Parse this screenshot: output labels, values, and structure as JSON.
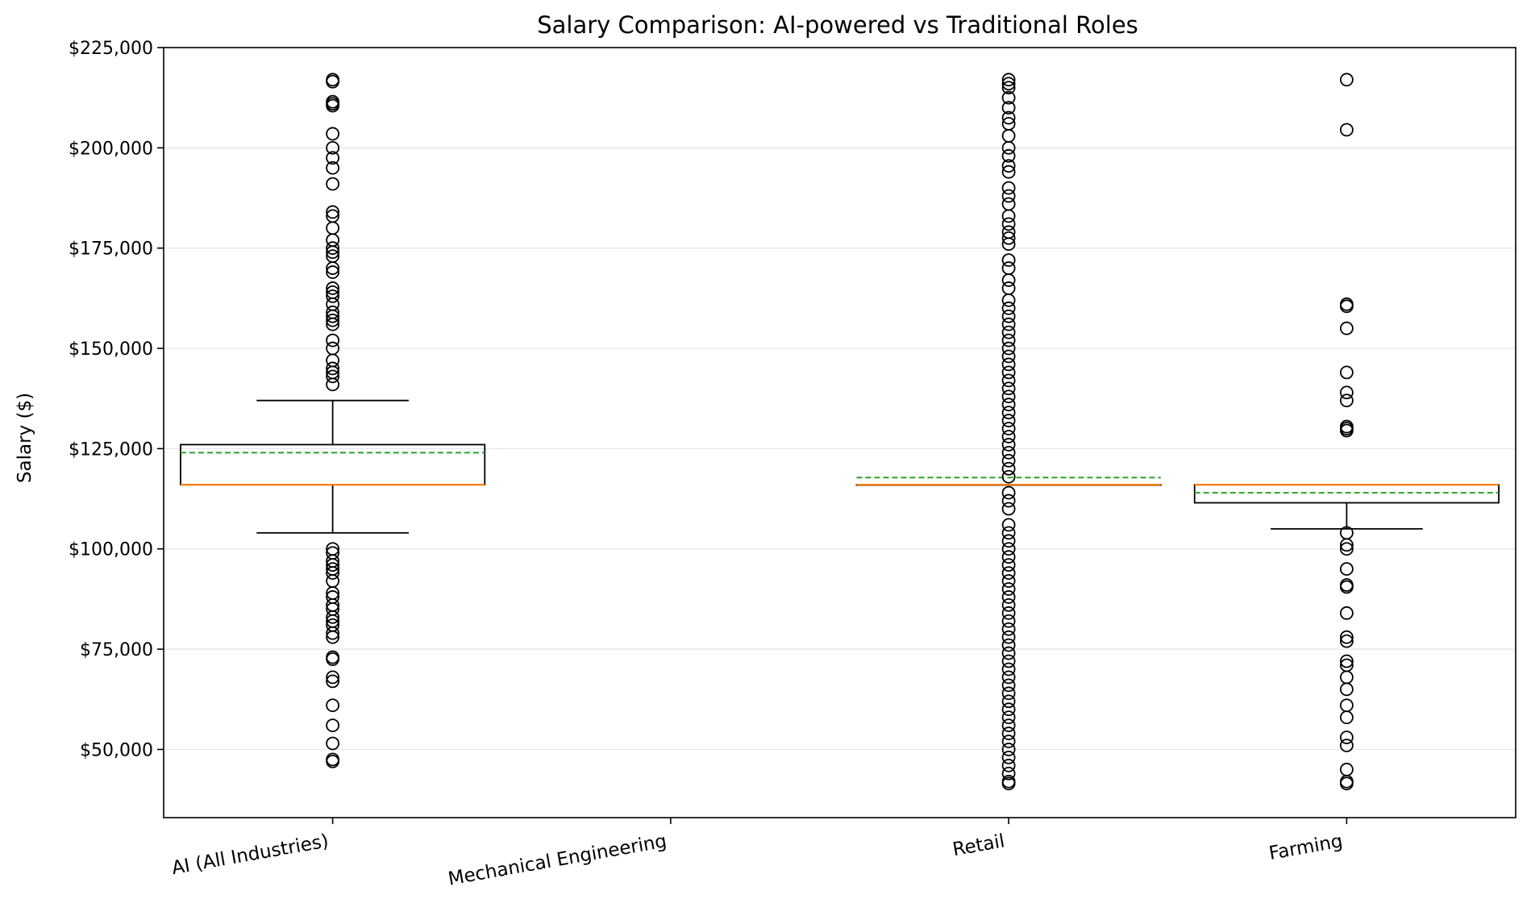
{
  "chart_data": {
    "type": "box",
    "title": "Salary Comparison: AI-powered vs Traditional Roles",
    "xlabel": "",
    "ylabel": "Salary ($)",
    "ylim": [
      33000,
      225000
    ],
    "yticks": [
      50000,
      75000,
      100000,
      125000,
      150000,
      175000,
      200000,
      225000
    ],
    "ytick_labels": [
      "$50,000",
      "$75,000",
      "$100,000",
      "$125,000",
      "$150,000",
      "$175,000",
      "$200,000",
      "$225,000"
    ],
    "grid": "horizontal",
    "categories": [
      "AI (All Industries)",
      "Mechanical Engineering",
      "Retail",
      "Farming"
    ],
    "boxes": [
      {
        "category": "AI (All Industries)",
        "q1": 116000,
        "median": 116000,
        "q3": 126000,
        "whisker_low": 104000,
        "whisker_high": 137000,
        "mean": 124000,
        "outliers": [
          217000,
          216500,
          211500,
          211000,
          210500,
          203500,
          200000,
          197500,
          195000,
          191000,
          184000,
          183000,
          180000,
          177000,
          175000,
          174000,
          173000,
          170000,
          169000,
          165000,
          164000,
          163000,
          161000,
          159000,
          158000,
          157000,
          156000,
          152000,
          150000,
          147000,
          145000,
          144000,
          143000,
          141000,
          100000,
          99000,
          97000,
          96000,
          95000,
          94000,
          92000,
          89000,
          88000,
          86000,
          85000,
          83000,
          82000,
          81000,
          79000,
          78000,
          73000,
          72500,
          68000,
          67000,
          61000,
          56000,
          51500,
          47500,
          47000
        ]
      },
      {
        "category": "Mechanical Engineering",
        "q1": null,
        "median": null,
        "q3": null,
        "whisker_low": null,
        "whisker_high": null,
        "mean": null,
        "outliers": []
      },
      {
        "category": "Retail",
        "q1": 116000,
        "median": 116000,
        "q3": 116000,
        "whisker_low": 116000,
        "whisker_high": 116000,
        "mean": 117800,
        "outliers": [
          217000,
          216000,
          215000,
          212500,
          210000,
          207500,
          206000,
          203000,
          200000,
          198000,
          195500,
          194000,
          190000,
          188000,
          186000,
          183000,
          181000,
          179000,
          177500,
          176000,
          172000,
          170000,
          167000,
          165000,
          162000,
          160000,
          158000,
          156000,
          154000,
          152000,
          150000,
          148000,
          146000,
          144000,
          142000,
          140000,
          138000,
          136000,
          134000,
          132000,
          130000,
          128000,
          126000,
          124000,
          122000,
          120000,
          118000,
          114000,
          112000,
          110000,
          106000,
          104000,
          102000,
          100000,
          98000,
          96000,
          94000,
          92000,
          90000,
          88000,
          86000,
          84000,
          82000,
          80000,
          78000,
          76000,
          74000,
          72000,
          70000,
          68000,
          66000,
          64000,
          62000,
          60000,
          58000,
          56000,
          54000,
          52000,
          50000,
          48000,
          46000,
          44000,
          42000,
          41500
        ]
      },
      {
        "category": "Farming",
        "q1": 111500,
        "median": 116000,
        "q3": 116000,
        "whisker_low": 105000,
        "whisker_high": 116000,
        "mean": 114000,
        "outliers": [
          217000,
          204500,
          161000,
          160500,
          155000,
          144000,
          139000,
          137000,
          130500,
          130000,
          129500,
          104000,
          101000,
          100000,
          95000,
          91000,
          90500,
          84000,
          78000,
          77000,
          72000,
          71000,
          68000,
          65000,
          61000,
          58000,
          53000,
          51000,
          45000,
          42000,
          41500
        ]
      }
    ],
    "colors": {
      "box": "#000000",
      "median": "#ff7f0e",
      "mean": "#2ca02c",
      "grid": "#e6e6e6"
    }
  }
}
